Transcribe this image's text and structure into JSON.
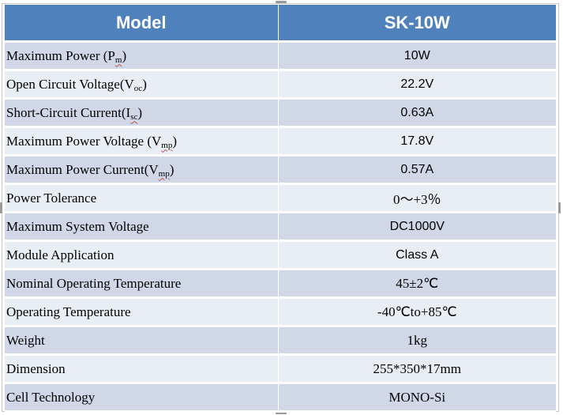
{
  "header": {
    "param_label": "Model",
    "value_label": "SK-10W"
  },
  "rows": [
    {
      "label": "Maximum Power (P",
      "sub": "m",
      "suffix": ")",
      "value": "10W"
    },
    {
      "label": "Open Circuit Voltage(V",
      "sub": "oc",
      "suffix": ")",
      "value": "22.2V"
    },
    {
      "label": "Short-Circuit Current(I",
      "sub": "sc",
      "suffix": ")",
      "value": "0.63A"
    },
    {
      "label": "Maximum Power Voltage (V",
      "sub": "mp",
      "suffix": ")",
      "value": "17.8V"
    },
    {
      "label": "Maximum Power Current(V",
      "sub": "mp",
      "suffix": ")",
      "value": "0.57A"
    },
    {
      "label": "Power Tolerance",
      "value": "0～+3％"
    },
    {
      "label": "Maximum System Voltage",
      "value": "DC1000V"
    },
    {
      "label": "Module Application",
      "value": "Class A"
    },
    {
      "label": "Nominal Operating Temperature",
      "value": "45±2℃"
    },
    {
      "label": "Operating Temperature",
      "value": "-40℃to+85℃"
    },
    {
      "label": "Weight",
      "value": "1kg"
    },
    {
      "label": "Dimension",
      "value": "255*350*17mm"
    },
    {
      "label": "Cell Technology",
      "value": "MONO-Si"
    }
  ]
}
